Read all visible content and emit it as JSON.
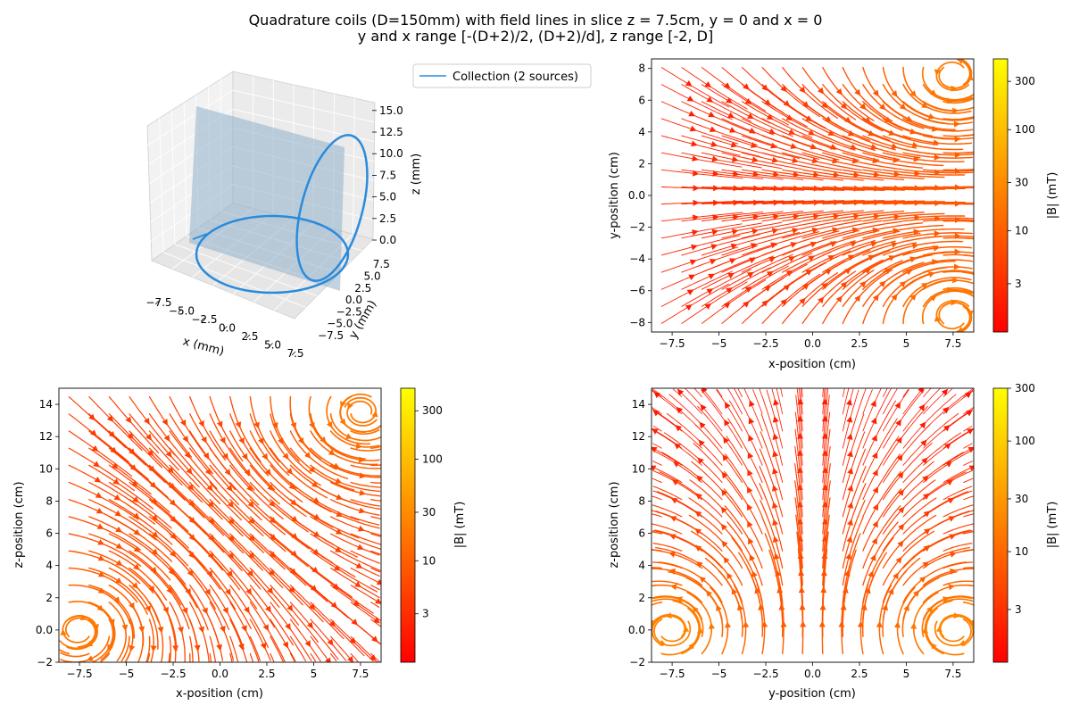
{
  "figure": {
    "title_line1": "Quadrature coils (D=150mm) with field lines in slice z = 7.5cm, y = 0 and x = 0",
    "title_line2": "y and x range [-(D+2)/2, (D+2)/d], z range [-2, D]"
  },
  "chart_data": [
    {
      "type": "line",
      "projection": "3d",
      "legend": [
        "Collection (2 sources)"
      ],
      "legend_placement": "top-right",
      "xlabel": "x (mm)",
      "ylabel": "y (mm)",
      "zlabel": "z (mm)",
      "x_ticks": [
        "−7.5",
        "−5.0",
        "−2.5",
        "0.0",
        "2.5",
        "5.0",
        "7.5"
      ],
      "y_ticks": [
        "−7.5",
        "−5.0",
        "−2.5",
        "0.0",
        "2.5",
        "5.0",
        "7.5"
      ],
      "z_ticks": [
        "0.0",
        "2.5",
        "5.0",
        "7.5",
        "10.0",
        "12.5",
        "15.0"
      ],
      "series_color": "#2a8bdc",
      "plane_color": "#8fb1cb"
    },
    {
      "type": "streamplot",
      "xlabel": "x-position (cm)",
      "ylabel": "y-position (cm)",
      "xlim": [
        -8.6,
        8.6
      ],
      "ylim": [
        -8.6,
        8.6
      ],
      "x_ticks": [
        -7.5,
        -5.0,
        -2.5,
        0.0,
        2.5,
        5.0,
        7.5
      ],
      "y_ticks": [
        -8,
        -6,
        -4,
        -2,
        0,
        2,
        4,
        6,
        8
      ],
      "colorbar_label": "|B| (mT)",
      "colorbar_ticks": [
        3,
        10,
        30,
        100,
        300
      ],
      "colorbar_range": [
        1,
        500
      ],
      "colormap": "autumn"
    },
    {
      "type": "streamplot",
      "xlabel": "x-position (cm)",
      "ylabel": "z-position (cm)",
      "xlim": [
        -8.6,
        8.6
      ],
      "ylim": [
        -2,
        15
      ],
      "x_ticks": [
        -7.5,
        -5.0,
        -2.5,
        0.0,
        2.5,
        5.0,
        7.5
      ],
      "y_ticks": [
        -2,
        0,
        2,
        4,
        6,
        8,
        10,
        12,
        14
      ],
      "colorbar_label": "|B| (mT)",
      "colorbar_ticks": [
        3,
        10,
        30,
        100,
        300
      ],
      "colorbar_range": [
        1,
        500
      ],
      "colormap": "autumn"
    },
    {
      "type": "streamplot",
      "xlabel": "y-position (cm)",
      "ylabel": "z-position (cm)",
      "xlim": [
        -8.6,
        8.6
      ],
      "ylim": [
        -2,
        15
      ],
      "x_ticks": [
        -7.5,
        -5.0,
        -2.5,
        0.0,
        2.5,
        5.0,
        7.5
      ],
      "y_ticks": [
        -2,
        0,
        2,
        4,
        6,
        8,
        10,
        12,
        14
      ],
      "colorbar_label": "|B| (mT)",
      "colorbar_ticks": [
        3,
        10,
        30,
        100,
        300
      ],
      "colorbar_range": [
        1,
        300
      ],
      "colormap": "autumn"
    }
  ]
}
